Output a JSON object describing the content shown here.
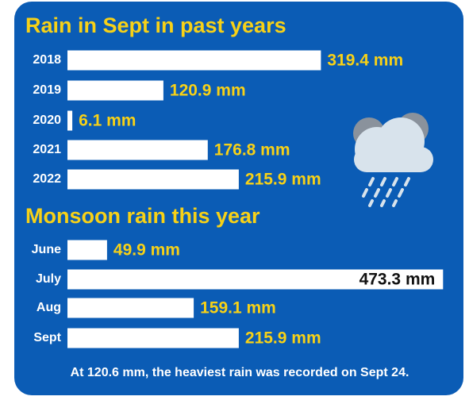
{
  "chart_data": [
    {
      "type": "bar",
      "orientation": "horizontal",
      "title": "Rain in Sept in past years",
      "categories": [
        "2018",
        "2019",
        "2020",
        "2021",
        "2022"
      ],
      "values": [
        319.4,
        120.9,
        6.1,
        176.8,
        215.9
      ],
      "value_labels": [
        "319.4 mm",
        "120.9 mm",
        "6.1 mm",
        "176.8 mm",
        "215.9 mm"
      ],
      "color": "#ffffff"
    },
    {
      "type": "bar",
      "orientation": "horizontal",
      "title": "Monsoon rain this year",
      "categories": [
        "June",
        "July",
        "Aug",
        "Sept"
      ],
      "values": [
        49.9,
        473.3,
        159.1,
        215.9
      ],
      "value_labels": [
        "49.9 mm",
        "473.3 mm",
        "159.1 mm",
        "215.9 mm"
      ],
      "color": "#ffffff"
    }
  ],
  "note": "At 120.6 mm, the heaviest rain was recorded on Sept 24."
}
